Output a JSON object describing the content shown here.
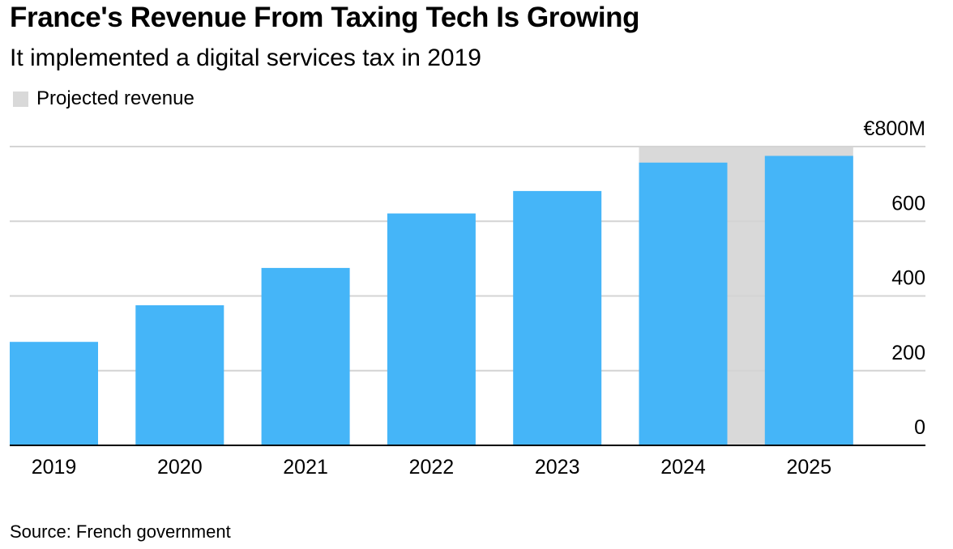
{
  "title": "France's Revenue From Taxing Tech Is Growing",
  "subtitle": "It implemented a digital services tax in 2019",
  "legend": {
    "projected_label": "Projected revenue"
  },
  "source": "Source: French government",
  "colors": {
    "bar": "#45b5f8",
    "projected_band": "#d9d9d9",
    "gridline": "#d4d4d4",
    "baseline": "#000000"
  },
  "chart_data": {
    "type": "bar",
    "title": "France's Revenue From Taxing Tech Is Growing",
    "subtitle": "It implemented a digital services tax in 2019",
    "categories": [
      "2019",
      "2020",
      "2021",
      "2022",
      "2023",
      "2024",
      "2025"
    ],
    "values": [
      277,
      375,
      475,
      621,
      681,
      757,
      775
    ],
    "projected": [
      "2024",
      "2025"
    ],
    "ylim": [
      0,
      800
    ],
    "yticks": [
      0,
      200,
      400,
      600,
      800
    ],
    "ytick_labels": [
      "0",
      "200",
      "400",
      "600",
      "€800M"
    ],
    "xlabel": "",
    "ylabel": "",
    "axis_position": "right",
    "grid": true,
    "legend_position": "top-left"
  }
}
